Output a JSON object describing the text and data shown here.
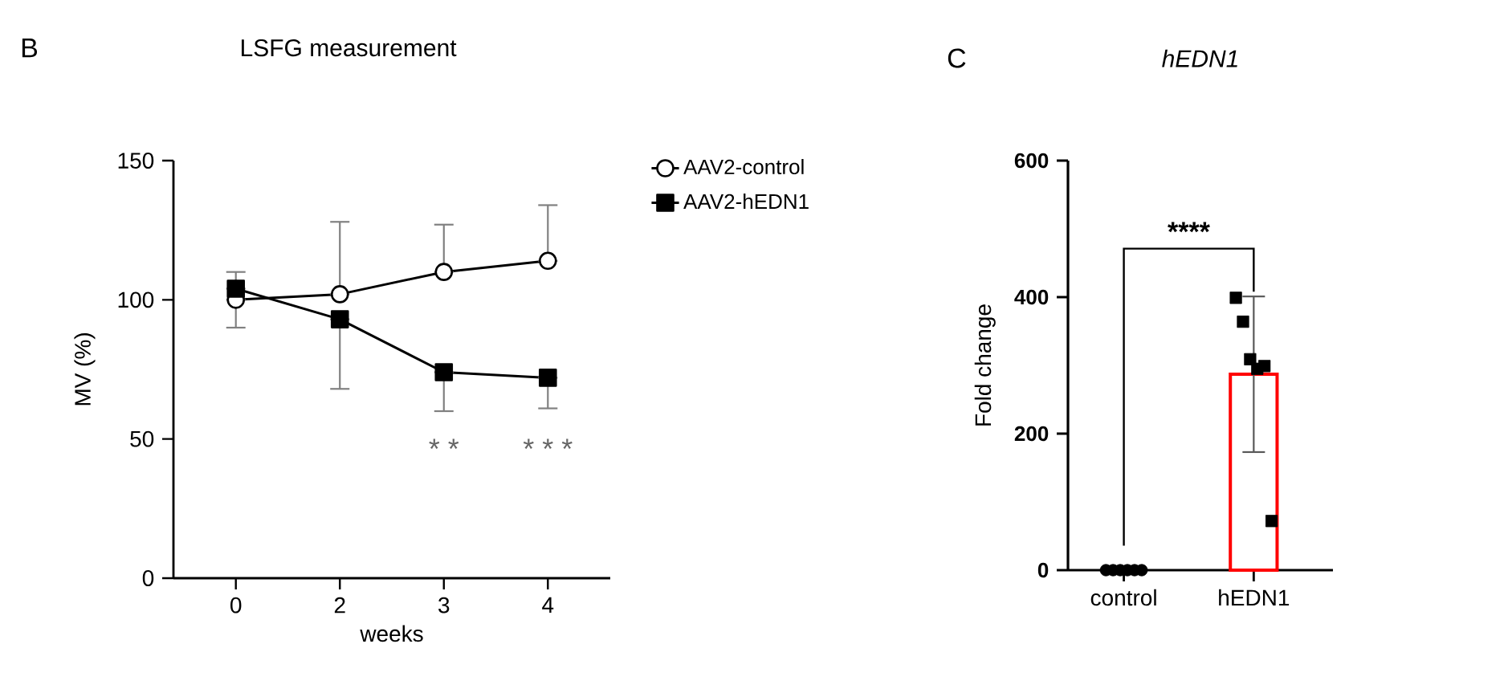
{
  "chart_data": [
    {
      "type": "line",
      "title": "LSFG measurement",
      "xlabel": "weeks",
      "ylabel": "MV (%)",
      "categories": [
        "0",
        "2",
        "3",
        "4"
      ],
      "ylim": [
        0,
        150
      ],
      "yticks": [
        0,
        50,
        100,
        150
      ],
      "legend": "top right",
      "line_style": "solid",
      "annotations": [
        "B",
        "* *",
        "* * *"
      ],
      "series": [
        {
          "name": "AAV2-control",
          "color": "#000000",
          "marker": "circle",
          "values": [
            100,
            102,
            110,
            114
          ],
          "errors": [
            [
              100,
              110
            ],
            [
              102,
              128
            ],
            [
              110,
              127
            ],
            [
              114,
              134
            ]
          ]
        },
        {
          "name": "AAV2-hEDN1",
          "color": "#000000",
          "marker": "square",
          "values": [
            104,
            93,
            74,
            72
          ],
          "errors": [
            [
              90,
              104
            ],
            [
              68,
              93
            ],
            [
              60,
              74
            ],
            [
              61,
              72
            ]
          ]
        }
      ]
    },
    {
      "type": "bar",
      "title": "hEDN1",
      "ylabel": "Fold change",
      "categories": [
        "control",
        "hEDN1"
      ],
      "ylim": [
        0,
        600
      ],
      "yticks": [
        0,
        200,
        400,
        600
      ],
      "annotations": [
        "C",
        "****"
      ],
      "series": [
        {
          "type": "bar",
          "colors": [
            "#000000",
            "#ff0000"
          ],
          "values": [
            0,
            287
          ],
          "errors": [
            null,
            114
          ]
        },
        {
          "type": "scatter",
          "marker": "circle",
          "color": "#000000",
          "x": [
            "control",
            "control",
            "control",
            "control",
            "control",
            "control"
          ],
          "values": [
            0,
            0,
            0,
            0,
            0,
            0
          ]
        },
        {
          "type": "scatter",
          "marker": "square",
          "color": "#000000",
          "x": [
            "hEDN1",
            "hEDN1",
            "hEDN1",
            "hEDN1",
            "hEDN1",
            "hEDN1"
          ],
          "values": [
            399,
            364,
            309,
            295,
            299,
            72
          ]
        }
      ]
    }
  ]
}
